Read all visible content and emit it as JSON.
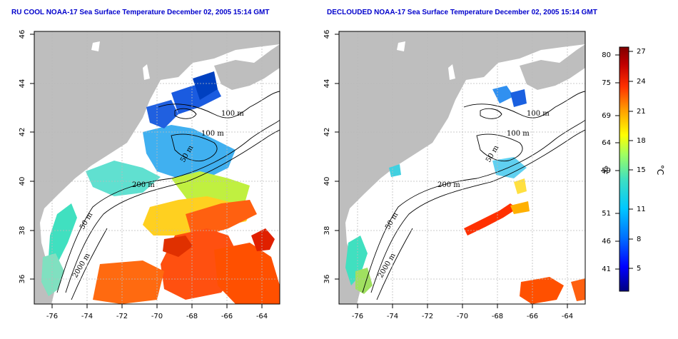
{
  "titles": {
    "left": "RU COOL NOAA-17 Sea Surface Temperature December 02, 2005 15:14 GMT",
    "right": "DECLOUDED NOAA-17 Sea Surface Temperature December 02, 2005 15:14 GMT"
  },
  "axes": {
    "lon_ticks": [
      "-76",
      "-74",
      "-72",
      "-70",
      "-68",
      "-66",
      "-64"
    ],
    "lat_ticks": [
      "46",
      "44",
      "42",
      "40",
      "38",
      "36"
    ]
  },
  "contour_labels": {
    "left": [
      "100 m",
      "100 m",
      "50 m",
      "200 m",
      "50 m",
      "2000 m"
    ],
    "right": [
      "100 m",
      "100 m",
      "50 m",
      "200 m",
      "50 m",
      "2000 m"
    ]
  },
  "colorbar": {
    "fahrenheit_unit": "°F",
    "celsius_unit": "°C",
    "fahrenheit_ticks": [
      "80",
      "75",
      "69",
      "64",
      "59",
      "51",
      "46",
      "41"
    ],
    "celsius_ticks": [
      "27",
      "24",
      "21",
      "18",
      "15",
      "11",
      "8",
      "5"
    ],
    "colors": [
      "#000080",
      "#0000ff",
      "#0080ff",
      "#00c0ff",
      "#40e0d0",
      "#80ff80",
      "#ffff00",
      "#ffa000",
      "#ff4000",
      "#c00000",
      "#800000"
    ]
  },
  "colors": {
    "land": "#bebebe",
    "title": "#0000cc",
    "grid": "#bbbbbb"
  }
}
